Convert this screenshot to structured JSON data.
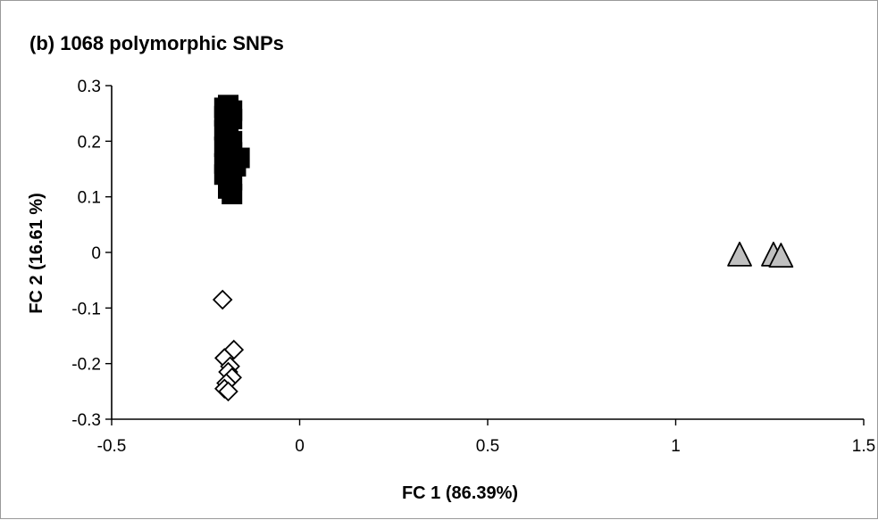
{
  "chart_data": {
    "type": "scatter",
    "title": "(b) 1068 polymorphic SNPs",
    "xlabel": "FC 1 (86.39%)",
    "ylabel": "FC 2 (16.61 %)",
    "xlim": [
      -0.5,
      1.5
    ],
    "ylim": [
      -0.3,
      0.3
    ],
    "xticks": [
      -0.5,
      0,
      0.5,
      1,
      1.5
    ],
    "xtick_labels": [
      "-0.5",
      "0",
      "0.5",
      "1",
      "1.5"
    ],
    "yticks": [
      0.3,
      0.2,
      0.1,
      0,
      -0.1,
      -0.2,
      -0.3
    ],
    "ytick_labels": [
      "0.3",
      "0.2",
      "0.1",
      "0",
      "-0.1",
      "-0.2",
      "-0.3"
    ],
    "grid": false,
    "series": [
      {
        "marker": "square",
        "color": "#000000",
        "points": [
          [
            -0.19,
            0.265
          ],
          [
            -0.2,
            0.26
          ],
          [
            -0.18,
            0.255
          ],
          [
            -0.19,
            0.25
          ],
          [
            -0.2,
            0.245
          ],
          [
            -0.18,
            0.24
          ],
          [
            -0.19,
            0.23
          ],
          [
            -0.2,
            0.22
          ],
          [
            -0.19,
            0.21
          ],
          [
            -0.18,
            0.2
          ],
          [
            -0.2,
            0.19
          ],
          [
            -0.18,
            0.18
          ],
          [
            -0.19,
            0.175
          ],
          [
            -0.16,
            0.17
          ],
          [
            -0.2,
            0.16
          ],
          [
            -0.17,
            0.155
          ],
          [
            -0.2,
            0.14
          ],
          [
            -0.18,
            0.13
          ],
          [
            -0.18,
            0.105
          ],
          [
            -0.19,
            0.115
          ]
        ]
      },
      {
        "marker": "diamond",
        "color": "#ffffff",
        "points": [
          [
            -0.205,
            -0.085
          ],
          [
            -0.175,
            -0.175
          ],
          [
            -0.2,
            -0.19
          ],
          [
            -0.185,
            -0.205
          ],
          [
            -0.19,
            -0.215
          ],
          [
            -0.18,
            -0.225
          ],
          [
            -0.195,
            -0.235
          ],
          [
            -0.2,
            -0.245
          ],
          [
            -0.19,
            -0.25
          ]
        ]
      },
      {
        "marker": "triangle",
        "color": "#c0c0c0",
        "points": [
          [
            1.17,
            -0.003
          ],
          [
            1.26,
            -0.003
          ],
          [
            1.28,
            -0.005
          ]
        ]
      }
    ]
  }
}
